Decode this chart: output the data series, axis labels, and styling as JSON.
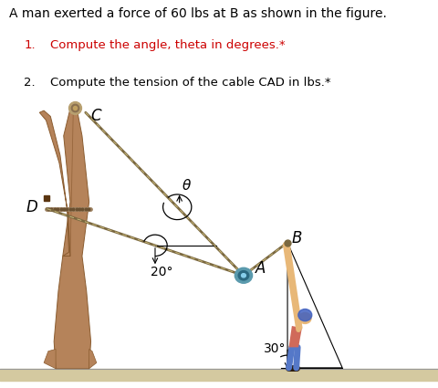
{
  "title_text": "A man exerted a force of 60 lbs at B as shown in the figure.",
  "item1_num": "1.",
  "item1_text": "Compute the angle, theta in degrees.*",
  "item2_num": "2.",
  "item2_text": "Compute the tension of the cable CAD in lbs.*",
  "bg_color": "#ffffff",
  "text_black": "#000000",
  "text_red": "#cc0000",
  "label_C": "C",
  "label_D": "D",
  "label_A": "A",
  "label_B": "B",
  "label_theta": "θ",
  "label_20": "20°",
  "label_30": "30°",
  "tree_color": "#b5835a",
  "tree_dark": "#8a5c30",
  "tree_shadow": "#7a4a20",
  "ground_fill": "#d4c9a0",
  "cable_color": "#7a6840",
  "cable_highlight": "#c8b87a",
  "pulley_outer": "#5a9aad",
  "pulley_inner": "#2a6880",
  "pulley_center": "#87ceeb",
  "shirt_color": "#d06a5a",
  "pants_color": "#5578c8",
  "skin_color": "#e8b878",
  "shoe_color": "#2a1a0a",
  "helmet_color": "#4060c0"
}
